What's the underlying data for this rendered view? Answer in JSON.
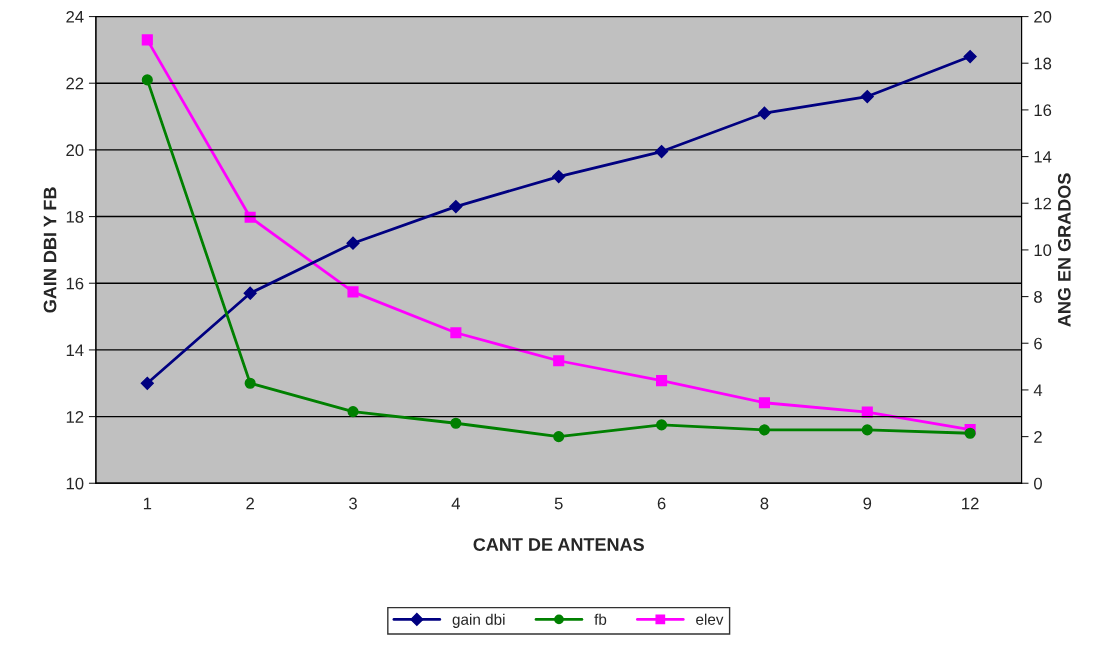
{
  "chart_data": {
    "type": "line",
    "xlabel": "CANT DE ANTENAS",
    "ylabel": "GAIN DBI Y FB",
    "y2label": "ANG EN GRADOS",
    "categories": [
      "1",
      "2",
      "3",
      "4",
      "5",
      "6",
      "8",
      "9",
      "12"
    ],
    "series": [
      {
        "name": "gain dbi",
        "color": "#000080",
        "marker": "diamond",
        "values": [
          13.0,
          15.7,
          17.2,
          18.3,
          19.2,
          19.95,
          21.1,
          21.6,
          22.8
        ]
      },
      {
        "name": "fb",
        "color": "#008000",
        "marker": "circle",
        "values": [
          22.1,
          13.0,
          12.15,
          11.8,
          11.4,
          11.75,
          11.6,
          11.6,
          11.5
        ]
      },
      {
        "name": "elev",
        "color": "#ff00ff",
        "marker": "square",
        "axis": "y2",
        "values": [
          19.0,
          11.4,
          8.2,
          6.45,
          5.25,
          4.4,
          3.45,
          3.05,
          2.3
        ]
      }
    ],
    "ylim": [
      10,
      24
    ],
    "yticks": [
      10,
      12,
      14,
      16,
      18,
      20,
      22,
      24
    ],
    "y2lim": [
      0,
      20
    ],
    "y2ticks": [
      0,
      2,
      4,
      6,
      8,
      10,
      12,
      14,
      16,
      18,
      20
    ],
    "grid": "y",
    "legend": "bottom",
    "line_style": "solid"
  }
}
